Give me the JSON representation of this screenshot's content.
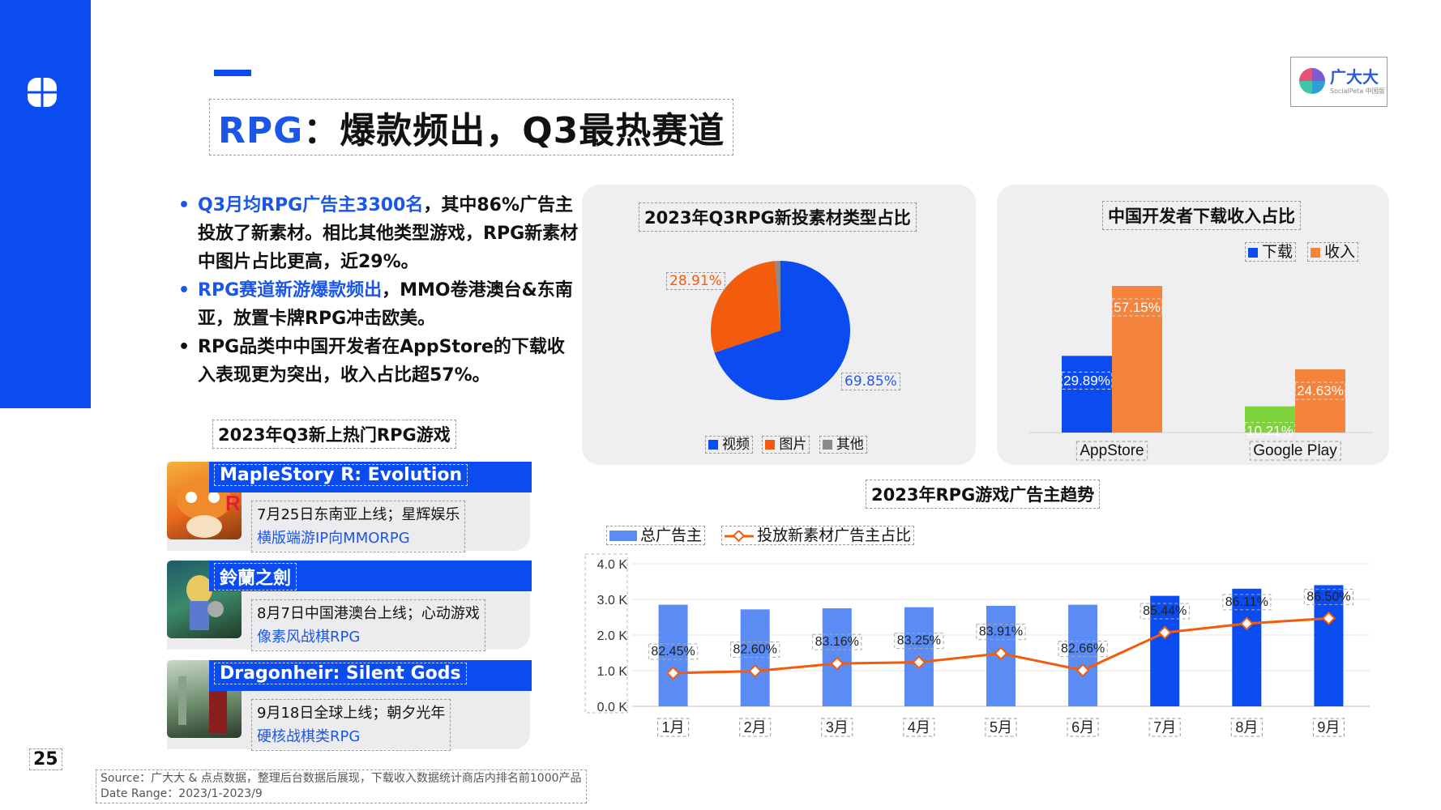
{
  "title": {
    "highlight": "RPG",
    "rest": "：爆款频出，Q3最热赛道"
  },
  "brand": {
    "name": "广大大",
    "sub": "SocialPeta 中国版"
  },
  "bullets": [
    {
      "highlight": "Q3月均RPG广告主3300名",
      "text": "，其中86%广告主投放了新素材。相比其他类型游戏，RPG新素材中图片占比更高，近29%。"
    },
    {
      "highlight": "RPG赛道新游爆款频出",
      "text": "，MMO卷港澳台&东南亚，放置卡牌RPG冲击欧美。"
    },
    {
      "highlight": "",
      "text": "RPG品类中中国开发者在AppStore的下载收入表现更为突出，收入占比超57%。"
    }
  ],
  "games_section": {
    "title": "2023年Q3新上热门RPG游戏",
    "games": [
      {
        "name": "MapleStory R:  Evolution",
        "release": "7月25日东南亚上线；星辉娱乐",
        "genre": "横版端游IP向MMORPG"
      },
      {
        "name": "鈴蘭之劍",
        "release": "8月7日中国港澳台上线；心动游戏",
        "genre": "像素风战棋RPG"
      },
      {
        "name": "Dragonheir:  Silent Gods",
        "release": "9月18日全球上线；朝夕光年",
        "genre": "硬核战棋类RPG"
      }
    ]
  },
  "page_number": "25",
  "footnote": {
    "line1": "Source：广大大 & 点点数据，整理后台数据后展现，下载收入数据统计商店内排名前1000产品",
    "line2": "Date Range：2023/1-2023/9"
  },
  "chart_data": [
    {
      "type": "pie",
      "title": "2023年Q3RPG新投素材类型占比",
      "slices": [
        {
          "name": "视频",
          "value": 69.85,
          "label": "69.85%",
          "color": "#0a4cf0"
        },
        {
          "name": "图片",
          "value": 28.91,
          "label": "28.91%",
          "color": "#f25c0c"
        },
        {
          "name": "其他",
          "value": 1.24,
          "label": "",
          "color": "#8a8a8a"
        }
      ],
      "legend_placement": "bottom"
    },
    {
      "type": "bar",
      "title": "中国开发者下载收入占比",
      "categories": [
        "AppStore",
        "Google Play"
      ],
      "series": [
        {
          "name": "下载",
          "values": [
            29.89,
            10.21
          ],
          "labels": [
            "29.89%",
            "10.21%"
          ],
          "colors": [
            "#0a4cf0",
            "#7ed23c"
          ]
        },
        {
          "name": "收入",
          "values": [
            57.15,
            24.63
          ],
          "labels": [
            "57.15%",
            "24.63%"
          ],
          "colors": [
            "#f4843c",
            "#f4843c"
          ]
        }
      ],
      "legend_colors": [
        "#0a4cf0",
        "#f4843c"
      ],
      "legend_placement": "top-right",
      "ylim": [
        0,
        60
      ]
    },
    {
      "type": "bar",
      "title": "2023年RPG游戏广告主趋势",
      "categories": [
        "1月",
        "2月",
        "3月",
        "4月",
        "5月",
        "6月",
        "7月",
        "8月",
        "9月"
      ],
      "bar_series": {
        "name": "总广告主",
        "values": [
          2.85,
          2.72,
          2.75,
          2.78,
          2.82,
          2.85,
          3.1,
          3.3,
          3.4
        ],
        "light_color": "#5b8cf6",
        "dark_color": "#0a4cf0",
        "dark_from_index": 6
      },
      "line_series": {
        "name": "投放新素材广告主占比",
        "values": [
          82.45,
          82.6,
          83.16,
          83.25,
          83.91,
          82.66,
          85.44,
          86.11,
          86.5
        ],
        "labels": [
          "82.45%",
          "82.60%",
          "83.16%",
          "83.25%",
          "83.91%",
          "82.66%",
          "85.44%",
          "86.11%",
          "86.50%"
        ],
        "color": "#f25c0c"
      },
      "y_ticks": [
        "4.0 K",
        "3.0 K",
        "2.0 K",
        "1.0 K",
        "0.0 K"
      ],
      "ylim": [
        0,
        4
      ],
      "legend_placement": "top-left",
      "grid": true
    }
  ]
}
